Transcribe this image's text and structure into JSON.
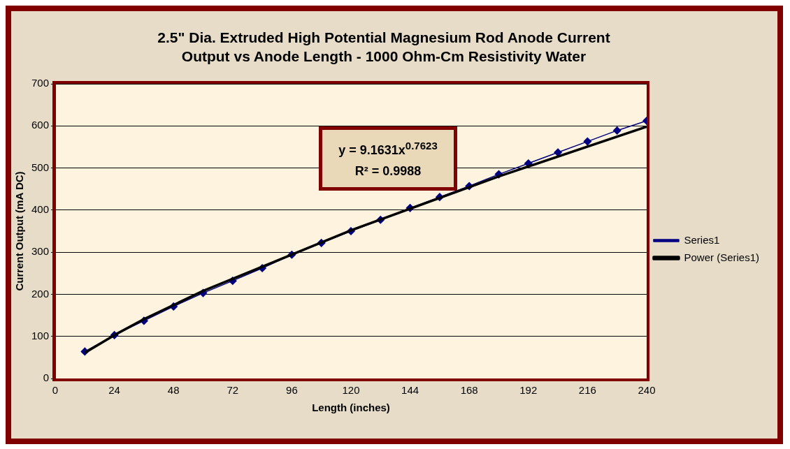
{
  "chart_data": {
    "type": "line",
    "title": "2.5\" Dia. Extruded High Potential Magnesium Rod Anode Current Output vs Anode Length - 1000 Ohm-Cm Resistivity Water",
    "xlabel": "Length (inches)",
    "ylabel": "Current Output (mA DC)",
    "x": [
      12,
      24,
      36,
      48,
      60,
      72,
      84,
      96,
      108,
      120,
      132,
      144,
      156,
      168,
      180,
      192,
      204,
      216,
      228,
      240
    ],
    "series": [
      {
        "name": "Series1",
        "color": "#000080",
        "marker": "diamond",
        "values": [
          64,
          103,
          137,
          171,
          203,
          232,
          262,
          294,
          322,
          350,
          377,
          405,
          431,
          457,
          485,
          511,
          537,
          563,
          589,
          612
        ]
      },
      {
        "name": "Power (Series1)",
        "color": "#000000",
        "marker": "none",
        "x": [
          12,
          24,
          36,
          60,
          120,
          180,
          240
        ],
        "values": [
          61,
          103,
          141,
          208,
          352,
          480,
          598
        ]
      }
    ],
    "xlim": [
      0,
      240
    ],
    "xticks": [
      0,
      24,
      48,
      72,
      96,
      120,
      144,
      168,
      192,
      216,
      240
    ],
    "ylim": [
      0,
      700
    ],
    "yticks": [
      0,
      100,
      200,
      300,
      400,
      500,
      600,
      700
    ],
    "grid": "y",
    "legend": "right",
    "annotations": [
      "y = 9.1631x$^{0.7623}$",
      "R² = 0.9988"
    ]
  }
}
